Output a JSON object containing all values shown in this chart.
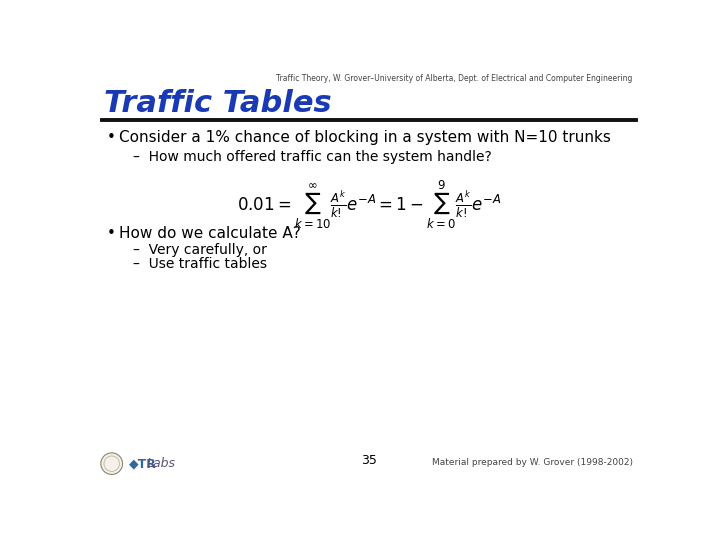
{
  "bg_color": "#ffffff",
  "header_text": "Traffic Theory, W. Grover–University of Alberta, Dept. of Electrical and Computer Engineering",
  "title": "Traffic Tables",
  "title_color": "#1a3ab5",
  "separator_color": "#111111",
  "bullet1": "Consider a 1% chance of blocking in a system with N=10 trunks",
  "sub1": "How much offered traffic can the system handle?",
  "formula_latex": "0.01 = \\sum_{k=10}^{\\infty} \\frac{A^k}{k!} e^{-A} = 1 - \\sum_{k=0}^{9} \\frac{A^k}{k!} e^{-A}",
  "bullet2": "How do we calculate A?",
  "sub2a": "Very carefully, or",
  "sub2b": "Use traffic tables",
  "footer_page": "35",
  "footer_right": "Material prepared by W. Grover (1998-2002)",
  "body_color": "#000000",
  "header_fontsize": 5.5,
  "title_fontsize": 22,
  "bullet_fontsize": 11,
  "sub_fontsize": 10,
  "formula_fontsize": 12,
  "footer_fontsize": 6.5,
  "page_fontsize": 9,
  "trlabs_color": "#4a4a8a",
  "trlabs_fontsize": 9
}
